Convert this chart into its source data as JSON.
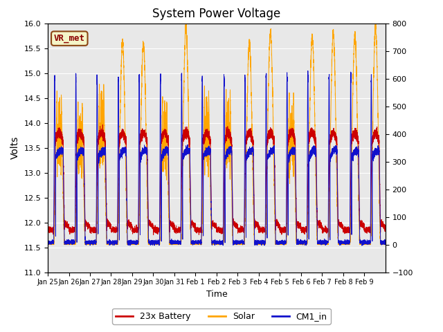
{
  "title": "System Power Voltage",
  "xlabel": "Time",
  "ylabel": "Volts",
  "ylim_left": [
    11.0,
    16.0
  ],
  "ylim_right": [
    -100,
    800
  ],
  "yticks_left": [
    11.0,
    11.5,
    12.0,
    12.5,
    13.0,
    13.5,
    14.0,
    14.5,
    15.0,
    15.5,
    16.0
  ],
  "yticks_right": [
    -100,
    0,
    100,
    200,
    300,
    400,
    500,
    600,
    700,
    800
  ],
  "background_color": "#e8e8e8",
  "fig_background": "#ffffff",
  "annotation_text": "VR_met",
  "annotation_fg": "#8B0000",
  "annotation_bg": "#f5f5c8",
  "annotation_edge": "#8B4513",
  "line_colors": {
    "battery": "#cc0000",
    "solar": "#FFA500",
    "cm1": "#1111cc"
  },
  "legend_labels": [
    "23x Battery",
    "Solar",
    "CM1_in"
  ],
  "xtick_labels": [
    "Jan 25",
    "Jan 26",
    "Jan 27",
    "Jan 28",
    "Jan 29",
    "Jan 30",
    "Jan 31",
    "Feb 1",
    "Feb 2",
    "Feb 3",
    "Feb 4",
    "Feb 5",
    "Feb 6",
    "Feb 7",
    "Feb 8",
    "Feb 9"
  ],
  "n_days": 16
}
